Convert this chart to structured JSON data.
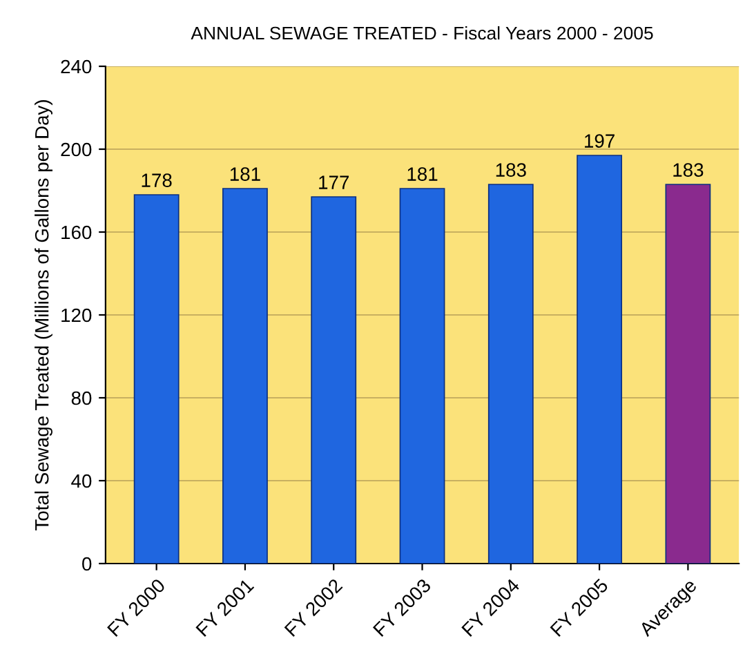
{
  "chart_data": {
    "type": "bar",
    "title": "ANNUAL SEWAGE TREATED - Fiscal Years 2000 - 2005",
    "ylabel": "Total Sewage Treated (Millions of Gallons per Day)",
    "categories": [
      "FY 2000",
      "FY 2001",
      "FY 2002",
      "FY 2003",
      "FY 2004",
      "FY 2005",
      "Average"
    ],
    "values": [
      178,
      181,
      177,
      181,
      183,
      197,
      183
    ],
    "colors": [
      "#1f66e0",
      "#1f66e0",
      "#1f66e0",
      "#1f66e0",
      "#1f66e0",
      "#1f66e0",
      "#8a2a8e"
    ],
    "ylim": [
      0,
      240
    ],
    "yticks": [
      0,
      40,
      80,
      120,
      160,
      200,
      240
    ],
    "grid": "y",
    "data_labels": true
  }
}
